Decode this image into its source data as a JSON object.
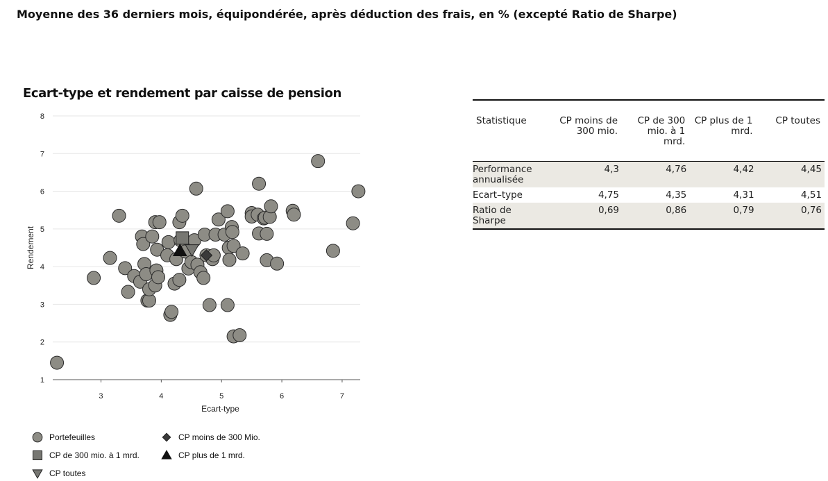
{
  "page_title": "Moyenne des 36 derniers mois, équipondérée, après déduction des frais, en % (excepté Ratio de Sharpe)",
  "chart_title": "Ecart-type et rendement par caisse de pension",
  "colors": {
    "portfolio_fill": "#8d8c85",
    "marker_dark": "#3a3a3a",
    "marker_mid": "#777772",
    "grid": "#e6e6e6"
  },
  "chart_data": {
    "type": "scatter",
    "title": "Ecart-type et rendement par caisse de pension",
    "xlabel": "Ecart-type",
    "ylabel": "Rendement",
    "xlim": [
      2.2,
      7.3
    ],
    "ylim": [
      1,
      8
    ],
    "xticks": [
      3,
      4,
      5,
      6,
      7
    ],
    "yticks": [
      1,
      2,
      3,
      4,
      5,
      6,
      7,
      8
    ],
    "grid": "horizontal",
    "series": [
      {
        "name": "Portefeuilles",
        "marker": "circle",
        "points": [
          [
            2.27,
            1.45
          ],
          [
            2.88,
            3.7
          ],
          [
            3.15,
            4.23
          ],
          [
            3.3,
            5.35
          ],
          [
            3.4,
            3.96
          ],
          [
            3.45,
            3.33
          ],
          [
            3.55,
            3.75
          ],
          [
            3.65,
            3.6
          ],
          [
            3.68,
            4.8
          ],
          [
            3.7,
            4.6
          ],
          [
            3.72,
            4.07
          ],
          [
            3.75,
            3.8
          ],
          [
            3.77,
            3.1
          ],
          [
            3.8,
            3.1
          ],
          [
            3.8,
            3.4
          ],
          [
            3.85,
            4.8
          ],
          [
            3.9,
            5.18
          ],
          [
            3.9,
            3.5
          ],
          [
            3.92,
            3.9
          ],
          [
            3.93,
            4.45
          ],
          [
            3.95,
            3.72
          ],
          [
            3.97,
            5.18
          ],
          [
            4.1,
            4.3
          ],
          [
            4.12,
            4.65
          ],
          [
            4.15,
            2.72
          ],
          [
            4.17,
            2.8
          ],
          [
            4.22,
            3.55
          ],
          [
            4.25,
            4.2
          ],
          [
            4.3,
            3.65
          ],
          [
            4.3,
            5.18
          ],
          [
            4.32,
            4.7
          ],
          [
            4.35,
            5.35
          ],
          [
            4.4,
            4.4
          ],
          [
            4.45,
            3.95
          ],
          [
            4.5,
            4.12
          ],
          [
            4.55,
            4.7
          ],
          [
            4.58,
            6.07
          ],
          [
            4.6,
            4.05
          ],
          [
            4.65,
            3.85
          ],
          [
            4.7,
            3.7
          ],
          [
            4.72,
            4.85
          ],
          [
            4.75,
            4.3
          ],
          [
            4.8,
            2.98
          ],
          [
            4.85,
            4.2
          ],
          [
            4.87,
            4.3
          ],
          [
            4.9,
            4.85
          ],
          [
            4.95,
            5.25
          ],
          [
            5.05,
            4.85
          ],
          [
            5.1,
            5.47
          ],
          [
            5.1,
            2.98
          ],
          [
            5.12,
            4.5
          ],
          [
            5.13,
            4.18
          ],
          [
            5.17,
            5.05
          ],
          [
            5.18,
            4.92
          ],
          [
            5.2,
            4.55
          ],
          [
            5.2,
            2.15
          ],
          [
            5.3,
            2.18
          ],
          [
            5.35,
            4.35
          ],
          [
            5.5,
            5.42
          ],
          [
            5.5,
            5.33
          ],
          [
            5.6,
            5.38
          ],
          [
            5.62,
            6.2
          ],
          [
            5.62,
            4.88
          ],
          [
            5.7,
            5.28
          ],
          [
            5.72,
            5.3
          ],
          [
            5.75,
            4.17
          ],
          [
            5.75,
            4.87
          ],
          [
            5.8,
            5.32
          ],
          [
            5.82,
            5.6
          ],
          [
            5.92,
            4.08
          ],
          [
            6.18,
            5.48
          ],
          [
            6.2,
            5.38
          ],
          [
            6.6,
            6.8
          ],
          [
            6.85,
            4.42
          ],
          [
            7.18,
            5.15
          ],
          [
            7.27,
            6.0
          ]
        ]
      },
      {
        "name": "CP moins de 300 Mio.",
        "marker": "diamond",
        "points": [
          [
            4.75,
            4.3
          ]
        ]
      },
      {
        "name": "CP de 300 mio. à 1 mrd.",
        "marker": "square",
        "points": [
          [
            4.35,
            4.76
          ]
        ]
      },
      {
        "name": "CP plus de 1 mrd.",
        "marker": "triangle-up",
        "points": [
          [
            4.31,
            4.42
          ]
        ]
      },
      {
        "name": "CP toutes",
        "marker": "triangle-down",
        "points": [
          [
            4.51,
            4.45
          ]
        ]
      }
    ]
  },
  "legend": [
    {
      "marker": "circle",
      "label": "Portefeuilles"
    },
    {
      "marker": "diamond",
      "label": "CP moins de 300 Mio."
    },
    {
      "marker": "square",
      "label": "CP de 300 mio. à 1 mrd."
    },
    {
      "marker": "triangle-up",
      "label": "CP plus de 1 mrd."
    },
    {
      "marker": "triangle-down",
      "label": "CP toutes"
    }
  ],
  "table": {
    "headers": [
      "Statistique",
      "CP moins de 300 mio.",
      "CP de 300 mio. à 1 mrd.",
      "CP plus de 1 mrd.",
      "CP toutes"
    ],
    "rows": [
      {
        "label": "Performance annualisée",
        "values": [
          "4,3",
          "4,76",
          "4,42",
          "4,45"
        ],
        "shaded": true
      },
      {
        "label": "Ecart–type",
        "values": [
          "4,75",
          "4,35",
          "4,31",
          "4,51"
        ],
        "shaded": false
      },
      {
        "label": "Ratio de Sharpe",
        "values": [
          "0,69",
          "0,86",
          "0,79",
          "0,76"
        ],
        "shaded": true
      }
    ]
  }
}
